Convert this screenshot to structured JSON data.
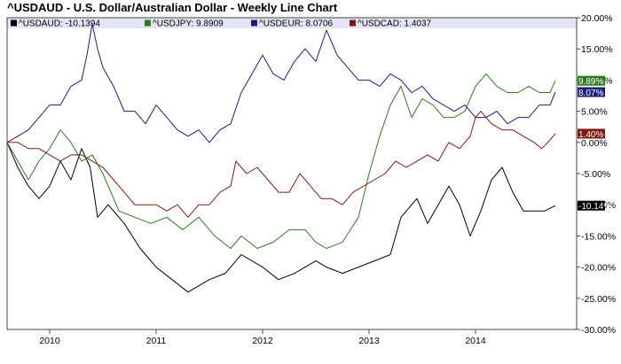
{
  "chart_data": {
    "type": "line",
    "title": "^USDAUD - U.S. Dollar/Australian Dollar - Weekly Line Chart",
    "ylim": [
      -30,
      20
    ],
    "y_ticks": [
      "20.00%",
      "15.00%",
      "10.00%",
      "5.00%",
      "0.00%",
      "-5.00%",
      "-10.00%",
      "-15.00%",
      "-20.00%",
      "-25.00%",
      "-30.00%"
    ],
    "x_range": [
      2009.6,
      2014.95
    ],
    "x_ticks": [
      "2010",
      "2011",
      "2012",
      "2013",
      "2014"
    ],
    "grid": false,
    "legend_placement": "top",
    "series": [
      {
        "name": "^USDAUD: -10.1394",
        "color": "#000000",
        "end_label": "-10.14%",
        "points": [
          [
            2009.6,
            0
          ],
          [
            2009.7,
            -4
          ],
          [
            2009.8,
            -7
          ],
          [
            2009.9,
            -9
          ],
          [
            2010.0,
            -7
          ],
          [
            2010.1,
            -3
          ],
          [
            2010.2,
            -6
          ],
          [
            2010.3,
            -1
          ],
          [
            2010.38,
            -4
          ],
          [
            2010.45,
            -12
          ],
          [
            2010.55,
            -10
          ],
          [
            2010.7,
            -13
          ],
          [
            2010.85,
            -17
          ],
          [
            2011.0,
            -20
          ],
          [
            2011.15,
            -22
          ],
          [
            2011.3,
            -24
          ],
          [
            2011.5,
            -22
          ],
          [
            2011.65,
            -21
          ],
          [
            2011.8,
            -18
          ],
          [
            2012.0,
            -20
          ],
          [
            2012.15,
            -22
          ],
          [
            2012.3,
            -21
          ],
          [
            2012.5,
            -19
          ],
          [
            2012.6,
            -20
          ],
          [
            2012.75,
            -21
          ],
          [
            2012.9,
            -20
          ],
          [
            2013.05,
            -19
          ],
          [
            2013.2,
            -18
          ],
          [
            2013.3,
            -12
          ],
          [
            2013.45,
            -9
          ],
          [
            2013.55,
            -13
          ],
          [
            2013.65,
            -10
          ],
          [
            2013.75,
            -7
          ],
          [
            2013.85,
            -10
          ],
          [
            2013.95,
            -15
          ],
          [
            2014.05,
            -11
          ],
          [
            2014.15,
            -6
          ],
          [
            2014.25,
            -4
          ],
          [
            2014.35,
            -8
          ],
          [
            2014.45,
            -11
          ],
          [
            2014.55,
            -11
          ],
          [
            2014.65,
            -11
          ],
          [
            2014.75,
            -10.14
          ]
        ]
      },
      {
        "name": "^USDJPY: 9.8909",
        "color": "#2d7a1f",
        "end_label": "9.89%",
        "points": [
          [
            2009.6,
            0
          ],
          [
            2009.7,
            -3
          ],
          [
            2009.8,
            -6
          ],
          [
            2009.9,
            -3
          ],
          [
            2010.0,
            -1
          ],
          [
            2010.1,
            2
          ],
          [
            2010.2,
            0
          ],
          [
            2010.3,
            -3
          ],
          [
            2010.4,
            -2
          ],
          [
            2010.5,
            -5
          ],
          [
            2010.65,
            -11
          ],
          [
            2010.8,
            -12
          ],
          [
            2010.95,
            -13
          ],
          [
            2011.1,
            -12
          ],
          [
            2011.25,
            -14
          ],
          [
            2011.4,
            -12
          ],
          [
            2011.55,
            -15
          ],
          [
            2011.7,
            -17
          ],
          [
            2011.8,
            -15
          ],
          [
            2011.95,
            -17
          ],
          [
            2012.1,
            -16
          ],
          [
            2012.25,
            -14
          ],
          [
            2012.4,
            -14
          ],
          [
            2012.5,
            -16
          ],
          [
            2012.6,
            -17
          ],
          [
            2012.75,
            -16
          ],
          [
            2012.9,
            -12
          ],
          [
            2013.0,
            -5
          ],
          [
            2013.1,
            1
          ],
          [
            2013.2,
            6
          ],
          [
            2013.3,
            9
          ],
          [
            2013.4,
            4
          ],
          [
            2013.5,
            7
          ],
          [
            2013.6,
            6
          ],
          [
            2013.7,
            4
          ],
          [
            2013.8,
            4
          ],
          [
            2013.9,
            5
          ],
          [
            2014.0,
            9
          ],
          [
            2014.1,
            11
          ],
          [
            2014.2,
            9
          ],
          [
            2014.3,
            8
          ],
          [
            2014.4,
            8
          ],
          [
            2014.5,
            9
          ],
          [
            2014.6,
            8
          ],
          [
            2014.7,
            8
          ],
          [
            2014.75,
            9.89
          ]
        ]
      },
      {
        "name": "^USDEUR: 8.0706",
        "color": "#1c1c7a",
        "end_label": "8.07%",
        "points": [
          [
            2009.6,
            0
          ],
          [
            2009.7,
            1
          ],
          [
            2009.8,
            2
          ],
          [
            2009.9,
            4
          ],
          [
            2010.0,
            6
          ],
          [
            2010.1,
            6
          ],
          [
            2010.2,
            9
          ],
          [
            2010.3,
            10
          ],
          [
            2010.35,
            14
          ],
          [
            2010.4,
            19
          ],
          [
            2010.45,
            15
          ],
          [
            2010.5,
            12
          ],
          [
            2010.6,
            9
          ],
          [
            2010.7,
            5
          ],
          [
            2010.8,
            5
          ],
          [
            2010.9,
            3
          ],
          [
            2011.0,
            6
          ],
          [
            2011.1,
            4
          ],
          [
            2011.2,
            2
          ],
          [
            2011.3,
            1
          ],
          [
            2011.4,
            2
          ],
          [
            2011.5,
            0
          ],
          [
            2011.6,
            2
          ],
          [
            2011.7,
            3
          ],
          [
            2011.8,
            8
          ],
          [
            2011.9,
            11
          ],
          [
            2012.0,
            14
          ],
          [
            2012.1,
            11
          ],
          [
            2012.2,
            10
          ],
          [
            2012.3,
            13
          ],
          [
            2012.4,
            15
          ],
          [
            2012.5,
            13
          ],
          [
            2012.6,
            18
          ],
          [
            2012.7,
            14
          ],
          [
            2012.8,
            12
          ],
          [
            2012.9,
            10
          ],
          [
            2013.0,
            10
          ],
          [
            2013.1,
            9
          ],
          [
            2013.2,
            11
          ],
          [
            2013.3,
            10
          ],
          [
            2013.4,
            8
          ],
          [
            2013.5,
            9
          ],
          [
            2013.6,
            7
          ],
          [
            2013.7,
            6
          ],
          [
            2013.8,
            5
          ],
          [
            2013.9,
            6
          ],
          [
            2014.0,
            4
          ],
          [
            2014.1,
            4
          ],
          [
            2014.2,
            5
          ],
          [
            2014.3,
            3
          ],
          [
            2014.4,
            4
          ],
          [
            2014.5,
            4
          ],
          [
            2014.6,
            6
          ],
          [
            2014.7,
            6
          ],
          [
            2014.75,
            8.07
          ]
        ]
      },
      {
        "name": "^USDCAD: 1.4037",
        "color": "#7a1a12",
        "end_label": "1.40%",
        "points": [
          [
            2009.6,
            0
          ],
          [
            2009.7,
            0
          ],
          [
            2009.8,
            -1
          ],
          [
            2009.9,
            -1
          ],
          [
            2010.0,
            -2
          ],
          [
            2010.1,
            -3
          ],
          [
            2010.2,
            -2
          ],
          [
            2010.3,
            -2
          ],
          [
            2010.4,
            -3
          ],
          [
            2010.5,
            -4
          ],
          [
            2010.6,
            -6
          ],
          [
            2010.7,
            -8
          ],
          [
            2010.8,
            -10
          ],
          [
            2010.9,
            -10
          ],
          [
            2011.0,
            -10
          ],
          [
            2011.1,
            -11
          ],
          [
            2011.2,
            -10
          ],
          [
            2011.3,
            -12
          ],
          [
            2011.4,
            -10
          ],
          [
            2011.5,
            -10
          ],
          [
            2011.6,
            -8
          ],
          [
            2011.7,
            -7
          ],
          [
            2011.75,
            -3
          ],
          [
            2011.85,
            -5
          ],
          [
            2011.95,
            -4
          ],
          [
            2012.05,
            -6
          ],
          [
            2012.15,
            -8
          ],
          [
            2012.25,
            -8
          ],
          [
            2012.35,
            -5
          ],
          [
            2012.45,
            -7
          ],
          [
            2012.55,
            -9
          ],
          [
            2012.65,
            -9
          ],
          [
            2012.75,
            -10
          ],
          [
            2012.85,
            -8
          ],
          [
            2012.95,
            -7
          ],
          [
            2013.05,
            -6
          ],
          [
            2013.15,
            -5
          ],
          [
            2013.25,
            -3
          ],
          [
            2013.35,
            -4
          ],
          [
            2013.45,
            -3
          ],
          [
            2013.55,
            -2
          ],
          [
            2013.65,
            -3
          ],
          [
            2013.75,
            0
          ],
          [
            2013.85,
            -1
          ],
          [
            2013.95,
            1
          ],
          [
            2014.0,
            4
          ],
          [
            2014.05,
            5
          ],
          [
            2014.15,
            3
          ],
          [
            2014.25,
            2
          ],
          [
            2014.35,
            2
          ],
          [
            2014.45,
            1
          ],
          [
            2014.55,
            0
          ],
          [
            2014.62,
            -1
          ],
          [
            2014.68,
            0
          ],
          [
            2014.75,
            1.4
          ]
        ]
      }
    ]
  }
}
